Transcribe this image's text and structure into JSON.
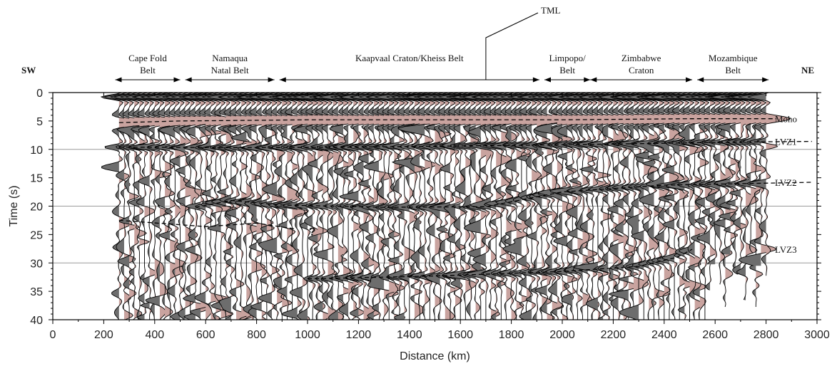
{
  "chart_data": {
    "type": "seismic-section",
    "title": "",
    "xlabel": "Distance (km)",
    "ylabel": "Time (s)",
    "xlim": [
      0,
      3000
    ],
    "ylim": [
      0,
      40
    ],
    "y_inverted": true,
    "xticks": [
      0,
      200,
      400,
      600,
      800,
      1000,
      1200,
      1400,
      1600,
      1800,
      2000,
      2200,
      2400,
      2600,
      2800,
      3000
    ],
    "yticks": [
      0,
      5,
      10,
      15,
      20,
      25,
      30,
      35,
      40
    ],
    "grid_lines_y": [
      10,
      20,
      30
    ],
    "trace_spacing_km": 20,
    "trace_range_km": [
      260,
      2800
    ],
    "colors": {
      "negative_fill": "#6d6d6d",
      "positive_fill": "#c9a39f",
      "trace_line": "#000000",
      "grid": "#9a9a9a"
    },
    "side_labels": {
      "left": "SW",
      "right": "NE"
    },
    "regions": [
      {
        "lines": [
          "Cape Fold",
          "Belt"
        ],
        "x_start": 245,
        "x_end": 500
      },
      {
        "lines": [
          "Namaqua",
          "Natal Belt"
        ],
        "x_start": 520,
        "x_end": 870
      },
      {
        "lines": [
          "Kaapvaal Craton/Kheiss Belt"
        ],
        "x_start": 890,
        "x_end": 1910
      },
      {
        "lines": [
          "Limpopo/",
          "Belt"
        ],
        "x_start": 1930,
        "x_end": 2110
      },
      {
        "lines": [
          "Zimbabwe",
          "Craton"
        ],
        "x_start": 2110,
        "x_end": 2510
      },
      {
        "lines": [
          "Mozambique",
          "Belt"
        ],
        "x_start": 2530,
        "x_end": 2810
      }
    ],
    "tml": {
      "label": "TML",
      "x": 1700
    },
    "horizons": [
      {
        "name": "Moho",
        "label": "Moho",
        "points": [
          [
            260,
            5.3
          ],
          [
            500,
            5.0
          ],
          [
            1000,
            4.8
          ],
          [
            1500,
            4.8
          ],
          [
            2000,
            4.8
          ],
          [
            2500,
            4.6
          ],
          [
            2840,
            4.6
          ]
        ]
      },
      {
        "name": "LVZ1",
        "label": "LVZ1",
        "points": [
          [
            260,
            9.6
          ],
          [
            700,
            9.7
          ],
          [
            1200,
            9.6
          ],
          [
            1800,
            9.3
          ],
          [
            2300,
            9.0
          ],
          [
            2700,
            8.7
          ],
          [
            2980,
            8.6
          ]
        ]
      },
      {
        "name": "LVZ2",
        "label": "LVZ2",
        "points": [
          [
            560,
            20.2
          ],
          [
            700,
            19.0
          ],
          [
            900,
            19.8
          ],
          [
            1300,
            20.2
          ],
          [
            1700,
            20.1
          ],
          [
            2000,
            17.5
          ],
          [
            2400,
            16.3
          ],
          [
            2980,
            15.8
          ]
        ]
      },
      {
        "name": "LVZ2-upper",
        "label": "",
        "points": [
          [
            260,
            22.5
          ],
          [
            600,
            23.6
          ],
          [
            800,
            23.0
          ],
          [
            950,
            24.0
          ]
        ]
      },
      {
        "name": "LVZ3",
        "label": "LVZ3",
        "points": [
          [
            1000,
            32.8
          ],
          [
            1500,
            32.3
          ],
          [
            2000,
            31.5
          ],
          [
            2300,
            30.6
          ],
          [
            2450,
            29.0
          ],
          [
            2510,
            27.6
          ]
        ]
      }
    ],
    "annotations": [
      {
        "text": "?",
        "x": 1005,
        "y": 24.4
      }
    ]
  }
}
